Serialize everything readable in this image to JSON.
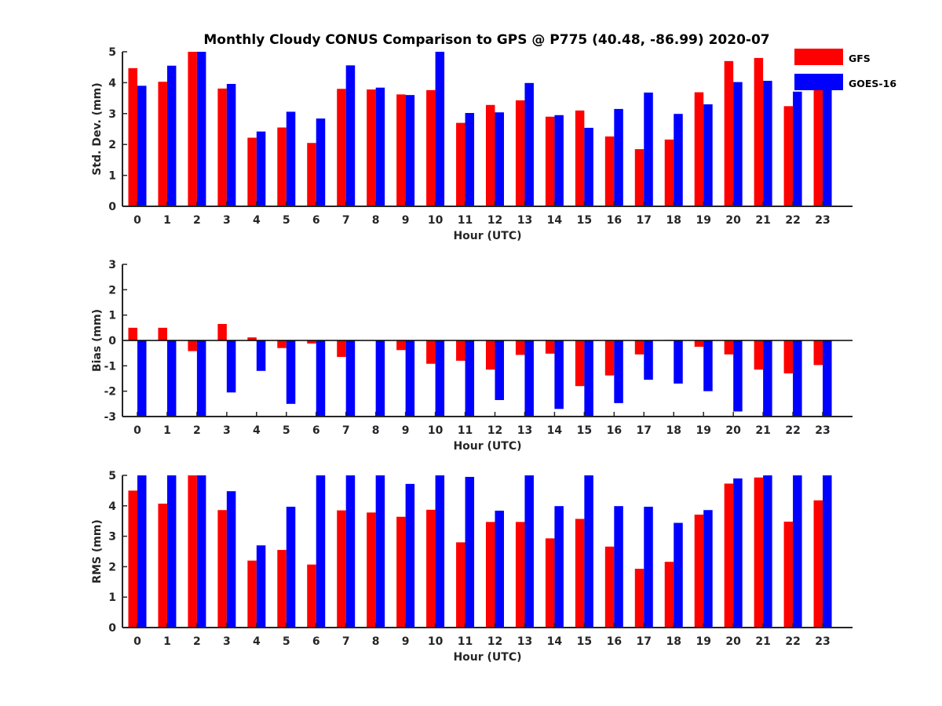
{
  "chart_data": [
    {
      "type": "bar",
      "title": "Monthly Cloudy CONUS Comparison to GPS @ P775 (40.48, -86.99) 2020-07",
      "xlabel": "Hour (UTC)",
      "ylabel": "Std. Dev. (mm)",
      "ylim": [
        0,
        5
      ],
      "yticks": [
        0,
        1,
        2,
        3,
        4,
        5
      ],
      "categories": [
        "0",
        "1",
        "2",
        "3",
        "4",
        "5",
        "6",
        "7",
        "8",
        "9",
        "10",
        "11",
        "12",
        "13",
        "14",
        "15",
        "16",
        "17",
        "18",
        "19",
        "20",
        "21",
        "22",
        "23"
      ],
      "series": [
        {
          "name": "GFS",
          "color": "#ff0000",
          "values": [
            4.47,
            4.03,
            5.0,
            3.81,
            2.22,
            2.55,
            2.05,
            3.8,
            3.78,
            3.62,
            3.76,
            2.7,
            3.28,
            3.43,
            2.9,
            3.1,
            2.26,
            1.85,
            2.16,
            3.69,
            4.7,
            4.8,
            3.24,
            4.0
          ]
        },
        {
          "name": "GOES-16",
          "color": "#0000ff",
          "values": [
            3.9,
            4.55,
            5.0,
            3.96,
            2.42,
            3.06,
            2.84,
            4.56,
            3.84,
            3.6,
            5.0,
            3.02,
            3.04,
            3.99,
            2.95,
            2.54,
            3.15,
            3.68,
            2.99,
            3.3,
            4.02,
            4.06,
            3.71,
            4.0
          ]
        }
      ],
      "legend": {
        "placement": "top-right",
        "entries": [
          "GFS",
          "GOES-16"
        ]
      },
      "grid": false
    },
    {
      "type": "bar",
      "xlabel": "Hour (UTC)",
      "ylabel": "Bias (mm)",
      "ylim": [
        -3,
        3
      ],
      "yticks": [
        -3,
        -2,
        -1,
        0,
        1,
        2,
        3
      ],
      "categories": [
        "0",
        "1",
        "2",
        "3",
        "4",
        "5",
        "6",
        "7",
        "8",
        "9",
        "10",
        "11",
        "12",
        "13",
        "14",
        "15",
        "16",
        "17",
        "18",
        "19",
        "20",
        "21",
        "22",
        "23"
      ],
      "series": [
        {
          "name": "GFS",
          "color": "#ff0000",
          "values": [
            0.5,
            0.5,
            -0.42,
            0.65,
            0.12,
            -0.3,
            -0.12,
            -0.65,
            0.0,
            -0.38,
            -0.92,
            -0.8,
            -1.15,
            -0.57,
            -0.52,
            -1.8,
            -1.38,
            -0.55,
            0.02,
            -0.25,
            -0.55,
            -1.15,
            -1.3,
            -0.97
          ]
        },
        {
          "name": "GOES-16",
          "color": "#0000ff",
          "values": [
            -3.0,
            -3.0,
            -3.0,
            -2.05,
            -1.2,
            -2.5,
            -3.0,
            -3.0,
            -3.0,
            -3.0,
            -3.0,
            -3.0,
            -2.35,
            -3.0,
            -2.7,
            -3.0,
            -2.47,
            -1.55,
            -1.7,
            -2.0,
            -2.8,
            -3.0,
            -3.0,
            -3.0
          ]
        }
      ],
      "zero_line": true,
      "grid": false
    },
    {
      "type": "bar",
      "xlabel": "Hour (UTC)",
      "ylabel": "RMS (mm)",
      "ylim": [
        0,
        5
      ],
      "yticks": [
        0,
        1,
        2,
        3,
        4,
        5
      ],
      "categories": [
        "0",
        "1",
        "2",
        "3",
        "4",
        "5",
        "6",
        "7",
        "8",
        "9",
        "10",
        "11",
        "12",
        "13",
        "14",
        "15",
        "16",
        "17",
        "18",
        "19",
        "20",
        "21",
        "22",
        "23"
      ],
      "series": [
        {
          "name": "GFS",
          "color": "#ff0000",
          "values": [
            4.5,
            4.07,
            5.0,
            3.86,
            2.2,
            2.55,
            2.07,
            3.85,
            3.78,
            3.64,
            3.87,
            2.8,
            3.47,
            3.47,
            2.93,
            3.57,
            2.66,
            1.93,
            2.16,
            3.71,
            4.73,
            4.93,
            3.48,
            4.18
          ]
        },
        {
          "name": "GOES-16",
          "color": "#0000ff",
          "values": [
            5.0,
            5.0,
            5.0,
            4.48,
            2.7,
            3.97,
            5.0,
            5.0,
            5.0,
            4.72,
            5.0,
            4.95,
            3.84,
            5.0,
            3.99,
            5.0,
            3.99,
            3.97,
            3.44,
            3.86,
            4.9,
            5.0,
            5.0,
            5.0
          ]
        }
      ],
      "grid": false
    }
  ]
}
